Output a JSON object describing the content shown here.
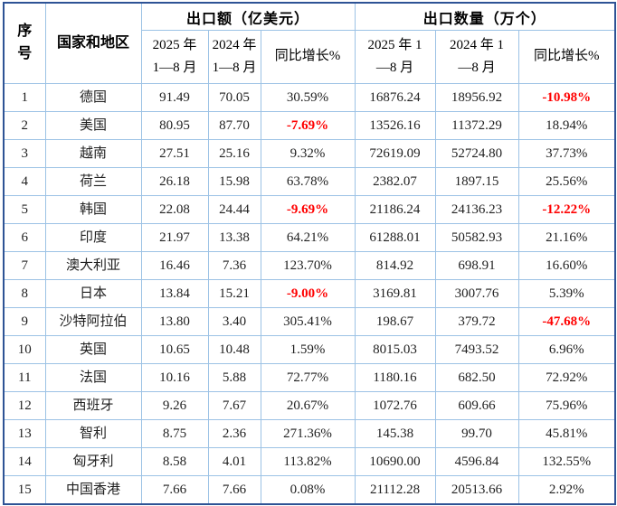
{
  "colors": {
    "border_outer": "#2E5395",
    "border_inner": "#9CC2E5",
    "header_text": "#000000",
    "body_text": "#1F1F1F",
    "negative_value": "#FF0000",
    "background": "#FFFFFF"
  },
  "chart_data": {
    "type": "table",
    "header": {
      "seq": "序\n号",
      "country": "国家和地区",
      "group_export_value": "出口额（亿美元）",
      "group_export_qty": "出口数量（万个）",
      "value_2025": "2025 年\n1—8 月",
      "value_2024": "2024 年\n1—8 月",
      "value_growth": "同比增长%",
      "qty_2025": "2025 年 1\n—8 月",
      "qty_2024": "2024 年 1\n—8 月",
      "qty_growth": "同比增长%"
    },
    "rows": [
      {
        "no": "1",
        "country": "德国",
        "value_2025": "91.49",
        "value_2024": "70.05",
        "value_growth": "30.59%",
        "qty_2025": "16876.24",
        "qty_2024": "18956.92",
        "qty_growth": "-10.98%"
      },
      {
        "no": "2",
        "country": "美国",
        "value_2025": "80.95",
        "value_2024": "87.70",
        "value_growth": "-7.69%",
        "qty_2025": "13526.16",
        "qty_2024": "11372.29",
        "qty_growth": "18.94%"
      },
      {
        "no": "3",
        "country": "越南",
        "value_2025": "27.51",
        "value_2024": "25.16",
        "value_growth": "9.32%",
        "qty_2025": "72619.09",
        "qty_2024": "52724.80",
        "qty_growth": "37.73%"
      },
      {
        "no": "4",
        "country": "荷兰",
        "value_2025": "26.18",
        "value_2024": "15.98",
        "value_growth": "63.78%",
        "qty_2025": "2382.07",
        "qty_2024": "1897.15",
        "qty_growth": "25.56%"
      },
      {
        "no": "5",
        "country": "韩国",
        "value_2025": "22.08",
        "value_2024": "24.44",
        "value_growth": "-9.69%",
        "qty_2025": "21186.24",
        "qty_2024": "24136.23",
        "qty_growth": "-12.22%"
      },
      {
        "no": "6",
        "country": "印度",
        "value_2025": "21.97",
        "value_2024": "13.38",
        "value_growth": "64.21%",
        "qty_2025": "61288.01",
        "qty_2024": "50582.93",
        "qty_growth": "21.16%"
      },
      {
        "no": "7",
        "country": "澳大利亚",
        "value_2025": "16.46",
        "value_2024": "7.36",
        "value_growth": "123.70%",
        "qty_2025": "814.92",
        "qty_2024": "698.91",
        "qty_growth": "16.60%"
      },
      {
        "no": "8",
        "country": "日本",
        "value_2025": "13.84",
        "value_2024": "15.21",
        "value_growth": "-9.00%",
        "qty_2025": "3169.81",
        "qty_2024": "3007.76",
        "qty_growth": "5.39%"
      },
      {
        "no": "9",
        "country": "沙特阿拉伯",
        "value_2025": "13.80",
        "value_2024": "3.40",
        "value_growth": "305.41%",
        "qty_2025": "198.67",
        "qty_2024": "379.72",
        "qty_growth": "-47.68%"
      },
      {
        "no": "10",
        "country": "英国",
        "value_2025": "10.65",
        "value_2024": "10.48",
        "value_growth": "1.59%",
        "qty_2025": "8015.03",
        "qty_2024": "7493.52",
        "qty_growth": "6.96%"
      },
      {
        "no": "11",
        "country": "法国",
        "value_2025": "10.16",
        "value_2024": "5.88",
        "value_growth": "72.77%",
        "qty_2025": "1180.16",
        "qty_2024": "682.50",
        "qty_growth": "72.92%"
      },
      {
        "no": "12",
        "country": "西班牙",
        "value_2025": "9.26",
        "value_2024": "7.67",
        "value_growth": "20.67%",
        "qty_2025": "1072.76",
        "qty_2024": "609.66",
        "qty_growth": "75.96%"
      },
      {
        "no": "13",
        "country": "智利",
        "value_2025": "8.75",
        "value_2024": "2.36",
        "value_growth": "271.36%",
        "qty_2025": "145.38",
        "qty_2024": "99.70",
        "qty_growth": "45.81%"
      },
      {
        "no": "14",
        "country": "匈牙利",
        "value_2025": "8.58",
        "value_2024": "4.01",
        "value_growth": "113.82%",
        "qty_2025": "10690.00",
        "qty_2024": "4596.84",
        "qty_growth": "132.55%"
      },
      {
        "no": "15",
        "country": "中国香港",
        "value_2025": "7.66",
        "value_2024": "7.66",
        "value_growth": "0.08%",
        "qty_2025": "21112.28",
        "qty_2024": "20513.66",
        "qty_growth": "2.92%"
      }
    ]
  }
}
